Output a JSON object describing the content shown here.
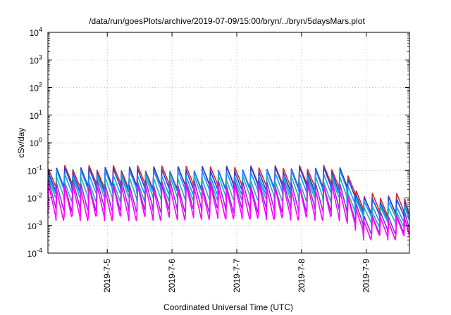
{
  "chart_data": {
    "type": "line",
    "title": "/data/run/goesPlots/archive/2019-07-09/15:00/bryn/../bryn/5daysMars.plot",
    "xlabel": "Coordinated Universal Time (UTC)",
    "ylabel": "cSv/day",
    "yscale": "log",
    "ylim": [
      0.0001,
      10000
    ],
    "xlim": [
      "2019-07-04 02:00",
      "2019-07-09 16:00"
    ],
    "y_ticks": [
      {
        "base": "10",
        "exp": "-4",
        "value": 0.0001
      },
      {
        "base": "10",
        "exp": "-3",
        "value": 0.001
      },
      {
        "base": "10",
        "exp": "-2",
        "value": 0.01
      },
      {
        "base": "10",
        "exp": "-1",
        "value": 0.1
      },
      {
        "base": "10",
        "exp": "0",
        "value": 1
      },
      {
        "base": "10",
        "exp": "1",
        "value": 10
      },
      {
        "base": "10",
        "exp": "2",
        "value": 100
      },
      {
        "base": "10",
        "exp": "3",
        "value": 1000
      },
      {
        "base": "10",
        "exp": "4",
        "value": 10000
      }
    ],
    "x_ticks": [
      {
        "label": "2019-7-5",
        "date": "2019-07-05 00:00"
      },
      {
        "label": "2019-7-6",
        "date": "2019-07-06 00:00"
      },
      {
        "label": "2019-7-7",
        "date": "2019-07-07 00:00"
      },
      {
        "label": "2019-7-8",
        "date": "2019-07-08 00:00"
      },
      {
        "label": "2019-7-9",
        "date": "2019-07-09 00:00"
      }
    ],
    "grid": true,
    "legend": "none",
    "sawtooth_period_hours": 3,
    "series": [
      {
        "color": "#d62728",
        "peak_before": 0.12,
        "peak_after": 0.012,
        "trough_before": 0.03,
        "trough_after": 0.003
      },
      {
        "color": "#1f3fd6",
        "peak_before": 0.11,
        "peak_after": 0.009,
        "trough_before": 0.025,
        "trough_after": 0.0025
      },
      {
        "color": "#1e90ff",
        "peak_before": 0.08,
        "peak_after": 0.006,
        "trough_before": 0.018,
        "trough_after": 0.0018
      },
      {
        "color": "#20b2aa",
        "peak_before": 0.05,
        "peak_after": 0.004,
        "trough_before": 0.01,
        "trough_after": 0.0012
      },
      {
        "color": "#8a2be2",
        "peak_before": 0.035,
        "peak_after": 0.0025,
        "trough_before": 0.004,
        "trough_after": 0.0006
      },
      {
        "color": "#ff00ff",
        "peak_before": 0.025,
        "peak_after": 0.0018,
        "trough_before": 0.002,
        "trough_after": 0.0004
      }
    ],
    "transition": {
      "start": "2019-07-08 14:00",
      "end": "2019-07-08 22:00"
    }
  }
}
